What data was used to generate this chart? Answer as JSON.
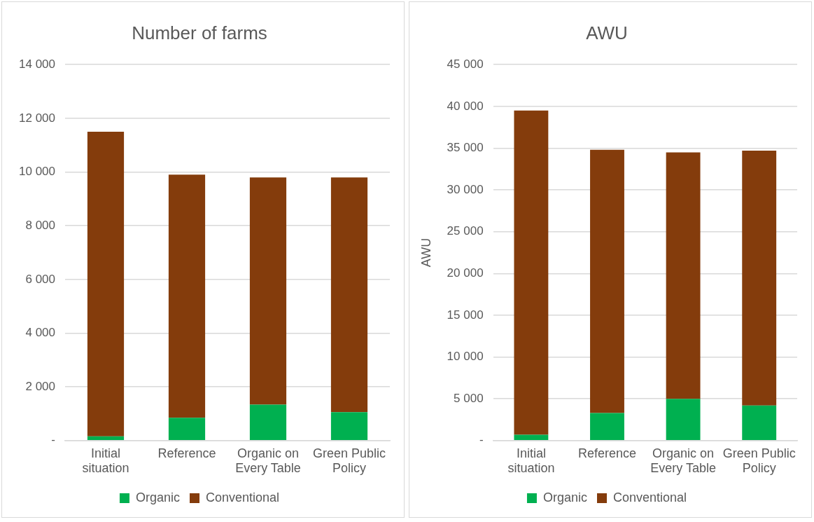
{
  "chart_data": [
    {
      "type": "bar",
      "title": "Number of farms",
      "categories": [
        "Initial situation",
        "Reference",
        "Organic on Every Table",
        "Green Public Policy"
      ],
      "stacked": true,
      "grid": "y",
      "legend": "bottom",
      "series": [
        {
          "name": "Organic",
          "color": "#00b050",
          "values": [
            160,
            850,
            1340,
            1060
          ]
        },
        {
          "name": "Conventional",
          "color": "#843c0c",
          "values": [
            11340,
            9050,
            8460,
            8740
          ]
        }
      ],
      "ylim": [
        0,
        14000
      ],
      "yticks": [
        {
          "value": 0,
          "label": "-"
        },
        {
          "value": 2000,
          "label": "2 000"
        },
        {
          "value": 4000,
          "label": "4 000"
        },
        {
          "value": 6000,
          "label": "6 000"
        },
        {
          "value": 8000,
          "label": "8 000"
        },
        {
          "value": 10000,
          "label": "10 000"
        },
        {
          "value": 12000,
          "label": "12 000"
        },
        {
          "value": 14000,
          "label": "14 000"
        }
      ]
    },
    {
      "type": "bar",
      "title": "AWU",
      "ylabel": "AWU",
      "categories": [
        "Initial situation",
        "Reference",
        "Organic on Every Table",
        "Green Public Policy"
      ],
      "stacked": true,
      "grid": "y",
      "legend": "bottom",
      "series": [
        {
          "name": "Organic",
          "color": "#00b050",
          "values": [
            700,
            3300,
            5000,
            4200
          ]
        },
        {
          "name": "Conventional",
          "color": "#843c0c",
          "values": [
            38800,
            31500,
            29500,
            30500
          ]
        }
      ],
      "ylim": [
        0,
        45000
      ],
      "yticks": [
        {
          "value": 0,
          "label": "-"
        },
        {
          "value": 5000,
          "label": "5 000"
        },
        {
          "value": 10000,
          "label": "10 000"
        },
        {
          "value": 15000,
          "label": "15 000"
        },
        {
          "value": 20000,
          "label": "20 000"
        },
        {
          "value": 25000,
          "label": "25 000"
        },
        {
          "value": 30000,
          "label": "30 000"
        },
        {
          "value": 35000,
          "label": "35 000"
        },
        {
          "value": 40000,
          "label": "40 000"
        },
        {
          "value": 45000,
          "label": "45 000"
        }
      ]
    }
  ]
}
